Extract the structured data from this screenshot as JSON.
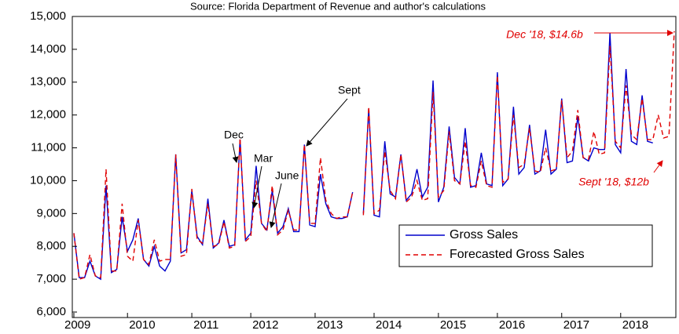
{
  "chart_data": {
    "type": "line",
    "subtitle": "Source: Florida Department of Revenue and author's calculations",
    "categories": [
      "2009",
      null,
      null,
      null,
      null,
      null,
      null,
      null,
      null,
      null,
      "2010",
      null,
      null,
      null,
      null,
      null,
      null,
      null,
      null,
      null,
      null,
      null,
      "2011",
      null,
      null,
      null,
      null,
      null,
      null,
      null,
      null,
      null,
      null,
      "2012",
      null,
      null,
      null,
      null,
      null,
      null,
      null,
      null,
      null,
      null,
      null,
      "2013",
      null,
      null,
      null,
      null,
      null,
      null,
      null,
      null,
      null,
      null,
      "2014",
      null,
      null,
      null,
      null,
      null,
      null,
      null,
      null,
      null,
      null,
      null,
      "2015",
      null,
      null,
      null,
      null,
      null,
      null,
      null,
      null,
      null,
      null,
      "2016",
      null,
      null,
      null,
      null,
      null,
      null,
      null,
      null,
      null,
      null,
      null,
      "2017",
      null,
      null,
      null,
      null,
      null,
      null,
      null,
      null,
      null,
      null,
      "2018",
      null,
      null,
      null,
      null,
      null,
      null,
      null,
      null,
      null,
      null
    ],
    "series": [
      {
        "name": "Gross Sales",
        "color": "#0000cc",
        "dash": false,
        "values": [
          8400,
          7050,
          7050,
          7550,
          7100,
          7000,
          9850,
          7200,
          7300,
          8900,
          7850,
          8200,
          8850,
          7600,
          7400,
          8000,
          7400,
          7250,
          7550,
          10800,
          7800,
          7900,
          9700,
          8300,
          8050,
          9450,
          7950,
          8100,
          8800,
          8000,
          8050,
          11250,
          8200,
          8400,
          10450,
          8700,
          8500,
          9700,
          8400,
          8600,
          9150,
          8450,
          8450,
          11100,
          8650,
          8600,
          10200,
          9300,
          8900,
          8850,
          8850,
          8900,
          9650,
          null,
          9000,
          12200,
          8950,
          8900,
          11200,
          9600,
          9500,
          10800,
          9400,
          9600,
          10350,
          9500,
          9800,
          13050,
          9350,
          9800,
          11650,
          10100,
          9900,
          11600,
          9800,
          9850,
          10850,
          9900,
          9850,
          13300,
          9850,
          10050,
          12250,
          10200,
          10400,
          11700,
          10200,
          10300,
          11550,
          10200,
          10350,
          12500,
          10550,
          10600,
          11950,
          10700,
          10600,
          11000,
          10950,
          10950,
          14500,
          11100,
          10850,
          13400,
          11200,
          11100,
          12600,
          11200,
          11150,
          null,
          null,
          null,
          null
        ]
      },
      {
        "name": "Forecasted Gross Sales",
        "color": "#e00000",
        "dash": true,
        "values": [
          8400,
          7000,
          7050,
          7750,
          7100,
          7050,
          10350,
          7250,
          7250,
          9300,
          7700,
          7550,
          8800,
          7600,
          7450,
          8200,
          7550,
          7600,
          7600,
          10800,
          7700,
          7750,
          9750,
          8200,
          8100,
          9300,
          8000,
          8050,
          8750,
          7950,
          8000,
          11300,
          8150,
          8300,
          10000,
          8700,
          8450,
          9850,
          8350,
          8500,
          9100,
          8500,
          8500,
          11100,
          8700,
          8700,
          10700,
          9400,
          9000,
          8850,
          8900,
          8900,
          9650,
          null,
          8950,
          12250,
          9000,
          9100,
          10900,
          9700,
          9450,
          10800,
          9350,
          9500,
          10000,
          9400,
          9450,
          12700,
          9500,
          9700,
          11500,
          10000,
          9900,
          11200,
          9850,
          9800,
          10600,
          9850,
          9800,
          13200,
          9950,
          10050,
          12000,
          10400,
          10500,
          11600,
          10300,
          10250,
          11000,
          10300,
          10350,
          12450,
          10700,
          10900,
          12150,
          10700,
          10650,
          11500,
          10800,
          10850,
          14100,
          11200,
          11000,
          12900,
          11400,
          11250,
          12500,
          11250,
          11250,
          12000,
          11300,
          11350,
          14550
        ]
      }
    ],
    "ylim": [
      6000,
      15000
    ],
    "yticks": [
      {
        "value": 6000,
        "label": "6,000"
      },
      {
        "value": 7000,
        "label": "7,000"
      },
      {
        "value": 8000,
        "label": "8,000"
      },
      {
        "value": 9000,
        "label": "9,000"
      },
      {
        "value": 10000,
        "label": "10,000"
      },
      {
        "value": 11000,
        "label": "11,000"
      },
      {
        "value": 12000,
        "label": "12,000"
      },
      {
        "value": 13000,
        "label": "13,000"
      },
      {
        "value": 14000,
        "label": "14,000"
      },
      {
        "value": 15000,
        "label": "15,000"
      }
    ],
    "annotations": [
      "Dec",
      "Mar",
      "June",
      "Sept",
      "Dec '18, $14.6b",
      "Sept '18, $12b"
    ],
    "legend": "lower right"
  }
}
